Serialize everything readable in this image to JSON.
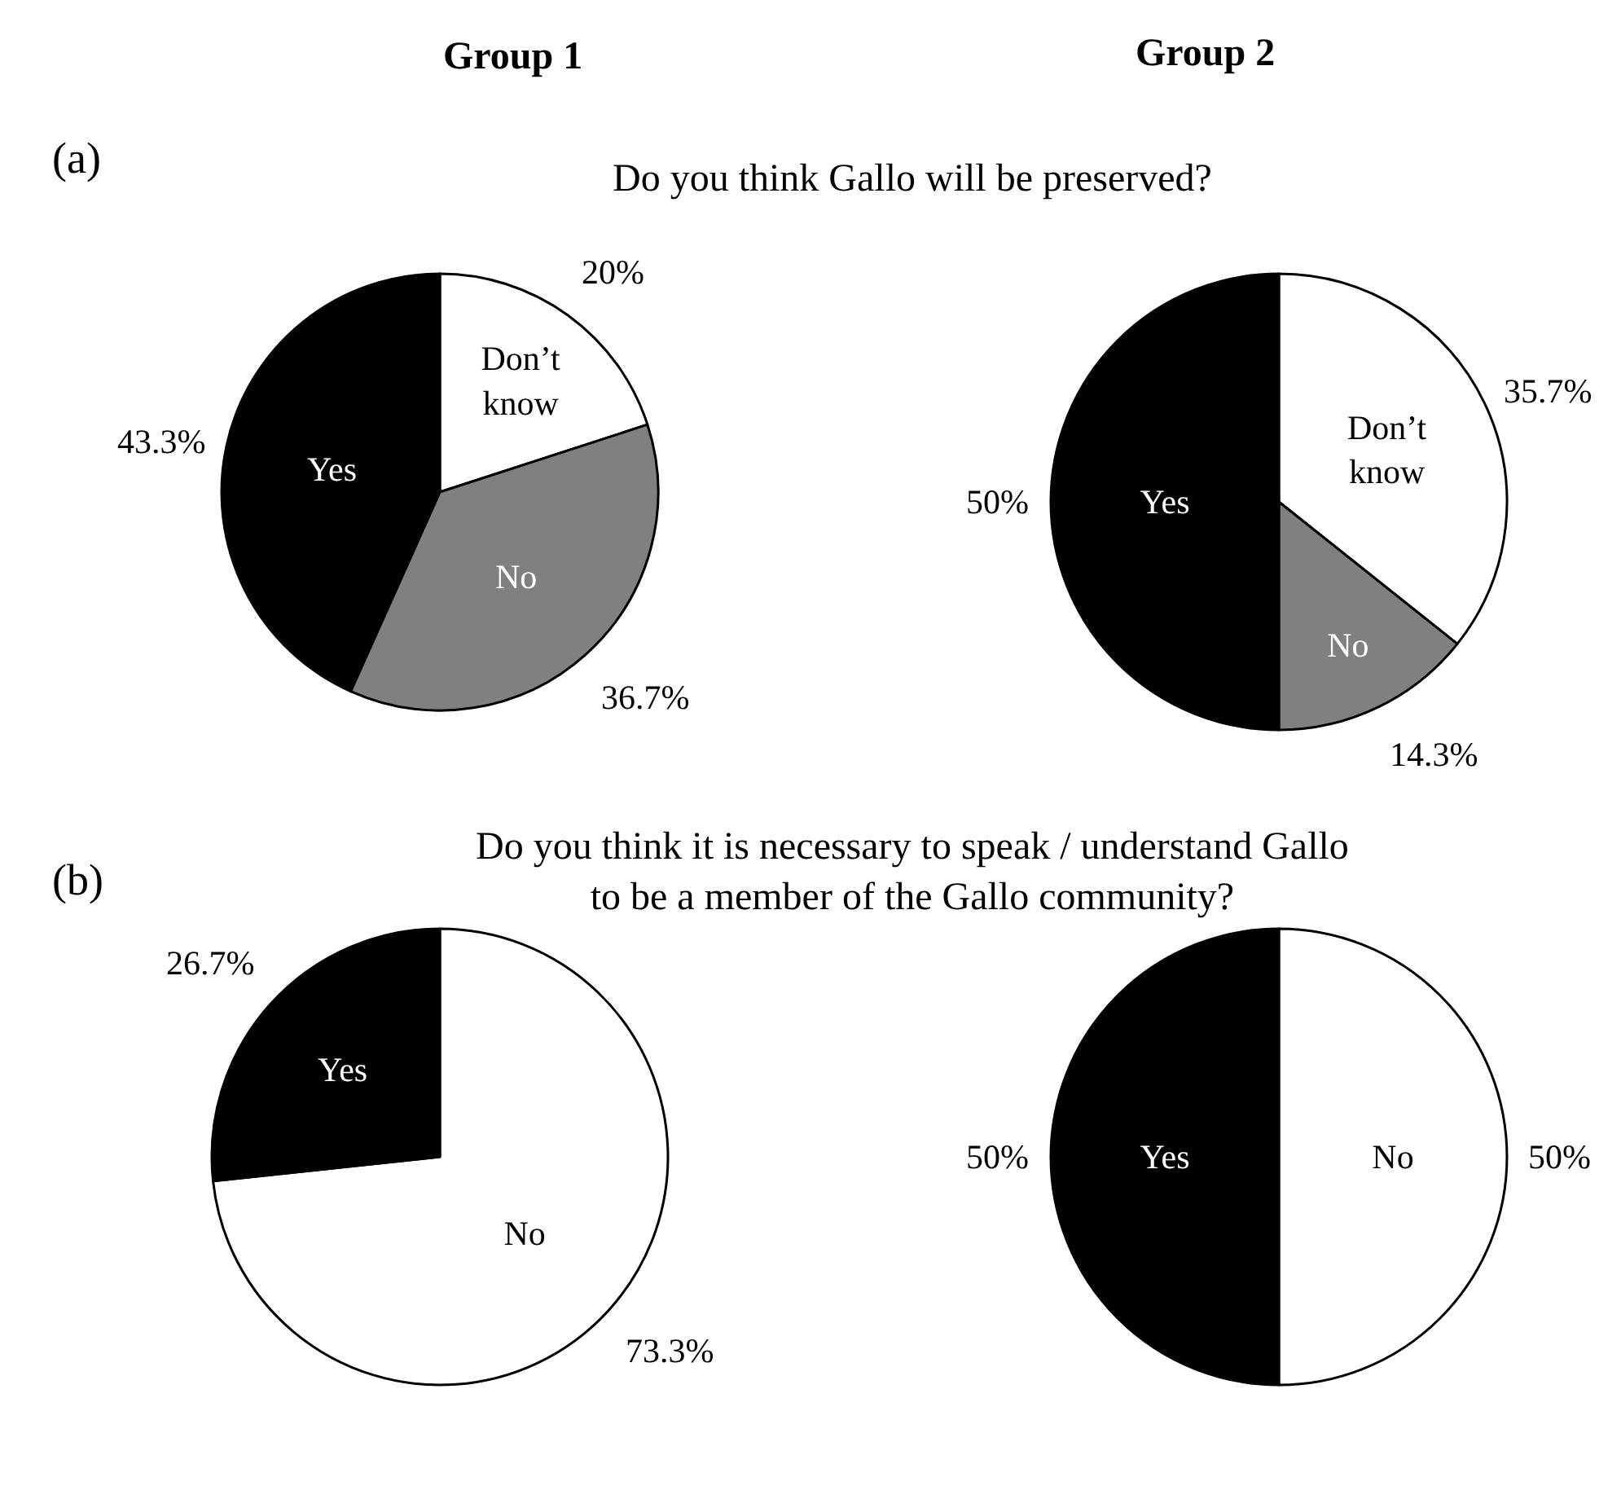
{
  "chart_data": [
    {
      "type": "pie",
      "title": "Do you think Gallo will be preserved?",
      "annotations": [
        "Group 1",
        "(a)"
      ],
      "categories": [
        "Don’t\nknow",
        "No",
        "Yes"
      ],
      "values": [
        20,
        36.7,
        43.3
      ],
      "value_labels": [
        "20%",
        "36.7%",
        "43.3%"
      ],
      "colors": [
        "#ffffff",
        "#808080",
        "#000000"
      ]
    },
    {
      "type": "pie",
      "annotations": [
        "Group 2"
      ],
      "categories": [
        "Don’t\nknow",
        "No",
        "Yes"
      ],
      "values": [
        35.7,
        14.3,
        50
      ],
      "value_labels": [
        "35.7%",
        "14.3%",
        "50%"
      ],
      "colors": [
        "#ffffff",
        "#808080",
        "#000000"
      ]
    },
    {
      "type": "pie",
      "title": "Do you think it is necessary to speak / understand Gallo\nto be a member of the Gallo community?",
      "annotations": [
        "(b)"
      ],
      "categories": [
        "No",
        "Yes"
      ],
      "values": [
        73.3,
        26.7
      ],
      "value_labels": [
        "73.3%",
        "26.7%"
      ],
      "colors": [
        "#ffffff",
        "#000000"
      ]
    },
    {
      "type": "pie",
      "categories": [
        "No",
        "Yes"
      ],
      "values": [
        50,
        50
      ],
      "value_labels": [
        "50%",
        "50%"
      ],
      "colors": [
        "#ffffff",
        "#000000"
      ]
    }
  ]
}
